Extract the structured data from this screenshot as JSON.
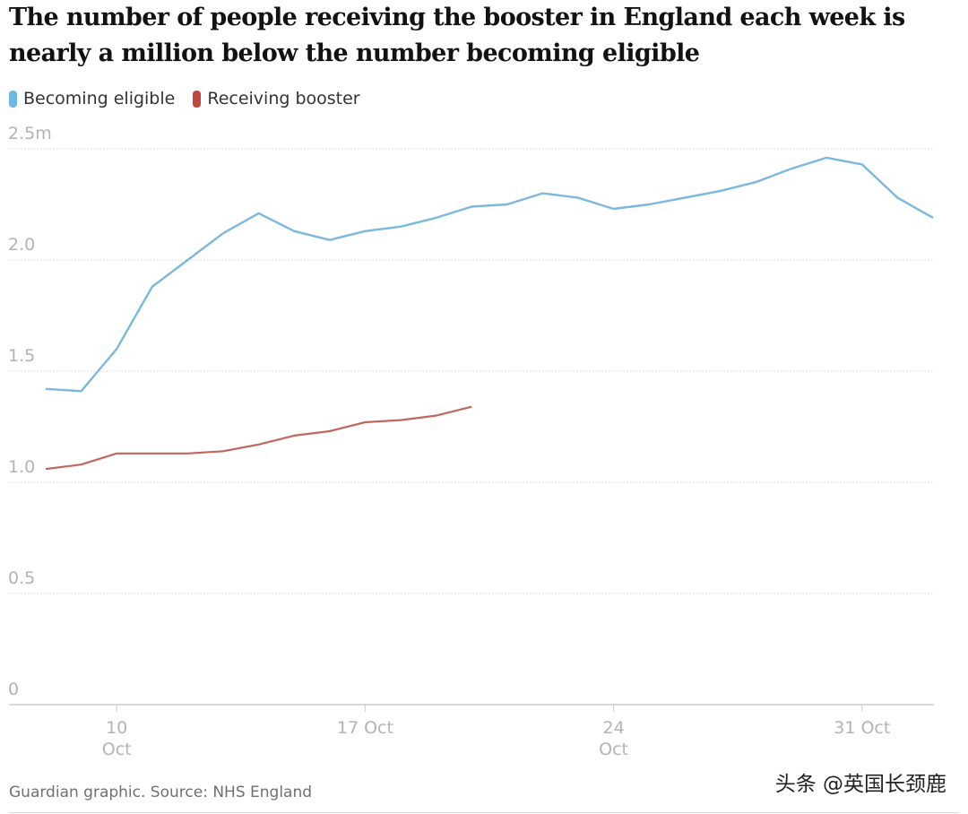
{
  "title": "The number of people receiving the booster in England each week is nearly a million below the number becoming eligible",
  "legend": [
    {
      "label": "Becoming eligible",
      "color": "#6cb7e3"
    },
    {
      "label": "Receiving booster",
      "color": "#c0473c"
    }
  ],
  "footer": "Guardian graphic. Source: NHS England",
  "watermark": "头条 @英国长颈鹿",
  "colors": {
    "eligible": "#7ab8dd",
    "booster": "#c1665c",
    "grid": "#d6d6d6",
    "axis": "#cccccc",
    "tick_label": "#b3b3b3"
  },
  "chart_data": {
    "type": "line",
    "title": "The number of people receiving the booster in England each week is nearly a million below the number becoming eligible",
    "xlabel": "",
    "ylabel": "",
    "y_unit": "m",
    "ylim": [
      0,
      2.5
    ],
    "yticks": [
      {
        "value": 0,
        "label": "0"
      },
      {
        "value": 0.5,
        "label": "0.5"
      },
      {
        "value": 1.0,
        "label": "1.0"
      },
      {
        "value": 1.5,
        "label": "1.5"
      },
      {
        "value": 2.0,
        "label": "2.0"
      },
      {
        "value": 2.5,
        "label": "2.5m"
      }
    ],
    "xticks": [
      {
        "index": 2,
        "lines": [
          "10",
          "Oct"
        ]
      },
      {
        "index": 9,
        "lines": [
          "17 Oct"
        ]
      },
      {
        "index": 16,
        "lines": [
          "24",
          "Oct"
        ]
      },
      {
        "index": 23,
        "lines": [
          "31 Oct"
        ]
      }
    ],
    "grid": "horizontal dotted",
    "legend_position": "top-left",
    "x": [
      "8 Oct",
      "9 Oct",
      "10 Oct",
      "11 Oct",
      "12 Oct",
      "13 Oct",
      "14 Oct",
      "15 Oct",
      "16 Oct",
      "17 Oct",
      "18 Oct",
      "19 Oct",
      "20 Oct",
      "21 Oct",
      "22 Oct",
      "23 Oct",
      "24 Oct",
      "25 Oct",
      "26 Oct",
      "27 Oct",
      "28 Oct",
      "29 Oct",
      "30 Oct",
      "31 Oct",
      "1 Nov",
      "2 Nov"
    ],
    "series": [
      {
        "name": "Becoming eligible",
        "color": "#7ab8dd",
        "values": [
          1.42,
          1.41,
          1.6,
          1.88,
          2.0,
          2.12,
          2.21,
          2.13,
          2.09,
          2.13,
          2.15,
          2.19,
          2.24,
          2.25,
          2.3,
          2.28,
          2.23,
          2.25,
          2.28,
          2.31,
          2.35,
          2.41,
          2.46,
          2.43,
          2.28,
          2.19
        ]
      },
      {
        "name": "Receiving booster",
        "color": "#c1665c",
        "values": [
          1.06,
          1.08,
          1.13,
          1.13,
          1.13,
          1.14,
          1.17,
          1.21,
          1.23,
          1.27,
          1.28,
          1.3,
          1.34
        ]
      }
    ]
  }
}
